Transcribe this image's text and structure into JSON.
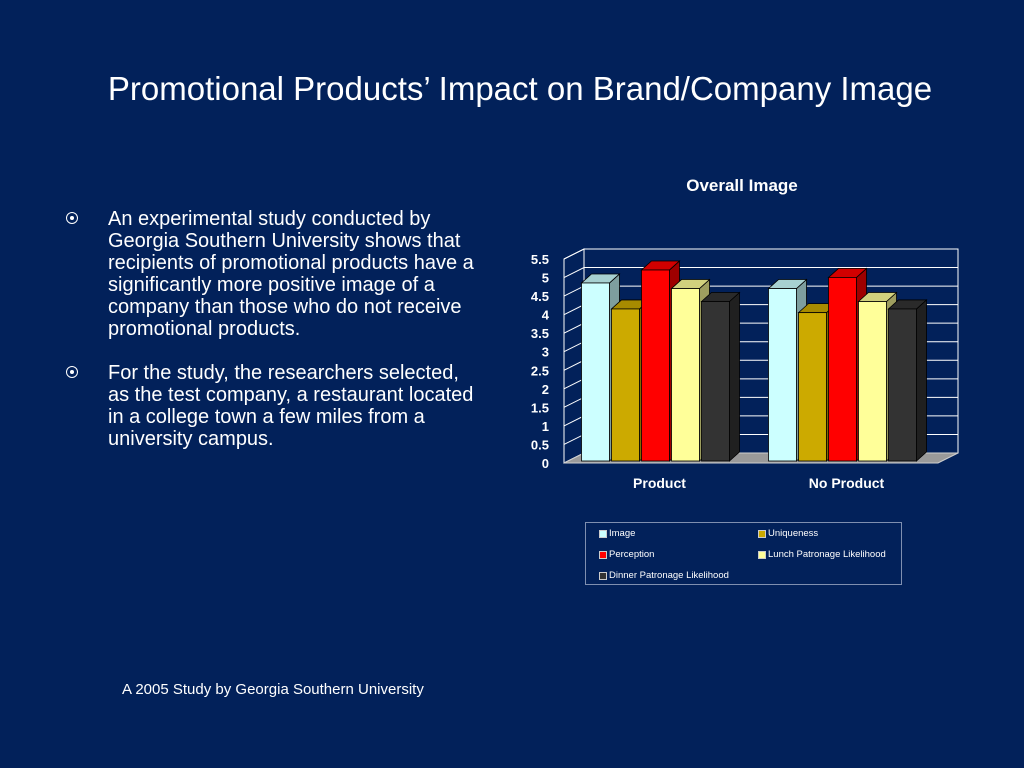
{
  "slide": {
    "title": "Promotional Products’ Impact on Brand/Company Image",
    "bullets": [
      "An experimental study conducted by Georgia Southern University shows that recipients of promotional products have a significantly more positive image of a company than those who do not receive promotional products.",
      "For the study, the researchers selected, as the test company, a restaurant located in a college town a few miles from a university campus."
    ],
    "footer": "A 2005 Study by Georgia Southern University"
  },
  "colors": {
    "background": "#02215a",
    "series": [
      "#ccffff",
      "#ccaa00",
      "#ff0000",
      "#ffff99",
      "#333333"
    ]
  },
  "chart_data": {
    "type": "bar",
    "title": "Overall Image",
    "categories": [
      "Product",
      "No Product"
    ],
    "series": [
      {
        "name": "Image",
        "values": [
          4.8,
          4.65
        ]
      },
      {
        "name": "Uniqueness",
        "values": [
          4.1,
          4.0
        ]
      },
      {
        "name": "Perception",
        "values": [
          5.15,
          4.95
        ]
      },
      {
        "name": "Lunch Patronage Likelihood",
        "values": [
          4.65,
          4.3
        ]
      },
      {
        "name": "Dinner Patronage Likelihood",
        "values": [
          4.3,
          4.1
        ]
      }
    ],
    "ylim": [
      0,
      5.5
    ],
    "yticks": [
      "0",
      "0.5",
      "1",
      "1.5",
      "2",
      "2.5",
      "3",
      "3.5",
      "4",
      "4.5",
      "5",
      "5.5"
    ],
    "grid": true,
    "legend_position": "bottom"
  }
}
